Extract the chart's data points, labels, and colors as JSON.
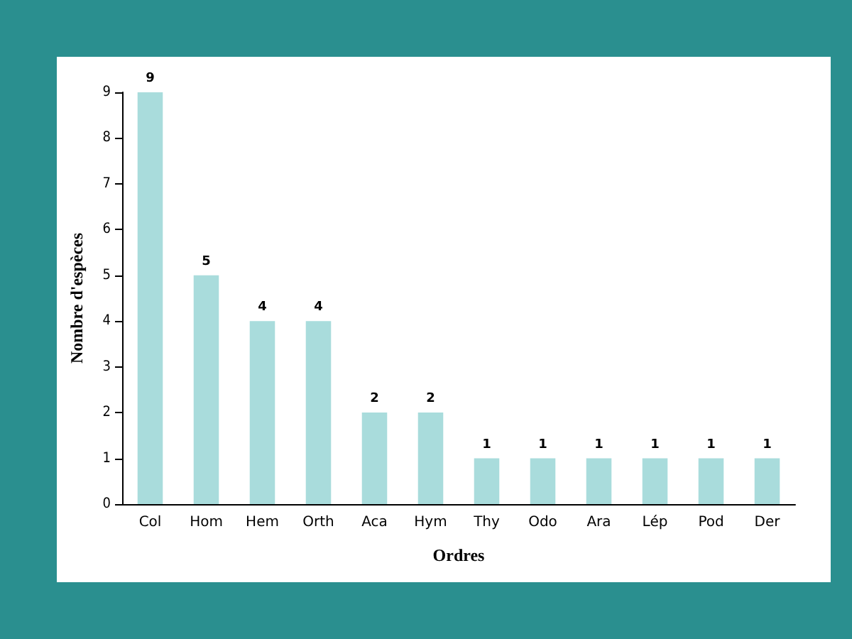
{
  "chart_data": {
    "type": "bar",
    "xlabel": "Ordres",
    "ylabel": "Nombre d'espèces",
    "categories": [
      "Col",
      "Hom",
      "Hem",
      "Orth",
      "Aca",
      "Hym",
      "Thy",
      "Odo",
      "Ara",
      "Lép",
      "Pod",
      "Der"
    ],
    "values": [
      9,
      5,
      4,
      4,
      2,
      2,
      1,
      1,
      1,
      1,
      1,
      1
    ],
    "color": "#a9dcdc",
    "ylim": [
      0,
      9
    ],
    "yticks": [
      0,
      1,
      2,
      3,
      4,
      5,
      6,
      7,
      8,
      9
    ],
    "grid": false,
    "data_labels": true
  }
}
